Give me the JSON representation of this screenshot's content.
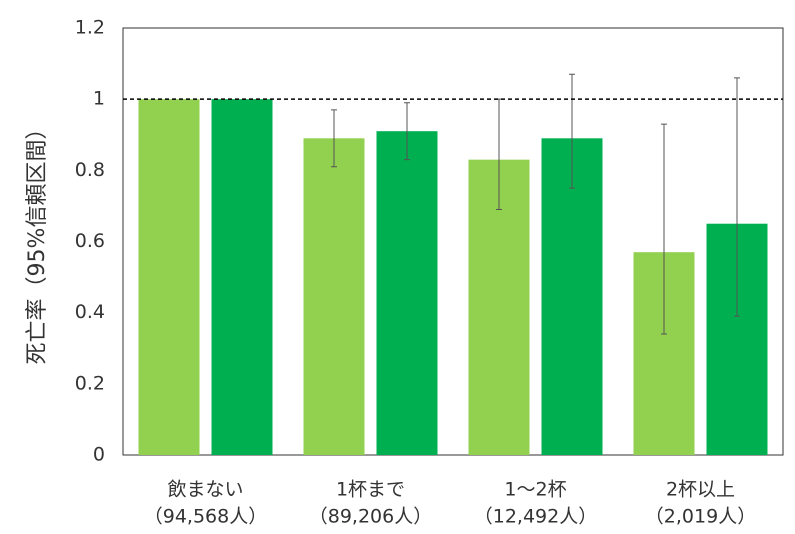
{
  "chart_data": {
    "type": "bar",
    "y_label": "死亡率（95%信頼区間）",
    "categories": [
      [
        "飲まない",
        "（94,568人）"
      ],
      [
        "1杯まで",
        "（89,206人）"
      ],
      [
        "1～2杯",
        "（12,492人）"
      ],
      [
        "2杯以上",
        "（2,019人）"
      ]
    ],
    "series": [
      {
        "color": "#92d050",
        "values": [
          1.0,
          0.89,
          0.83,
          0.57
        ],
        "ci_lower": [
          null,
          0.81,
          0.69,
          0.34
        ],
        "ci_upper": [
          null,
          0.97,
          1.0,
          0.93
        ]
      },
      {
        "color": "#00b050",
        "values": [
          1.0,
          0.91,
          0.89,
          0.65
        ],
        "ci_lower": [
          null,
          0.83,
          0.75,
          0.39
        ],
        "ci_upper": [
          null,
          0.99,
          1.07,
          1.06
        ]
      }
    ],
    "reference_line": 1,
    "ylim": [
      0,
      1.2
    ],
    "yticks": [
      0,
      0.2,
      0.4,
      0.6,
      0.8,
      1,
      1.2
    ],
    "grid": false
  }
}
